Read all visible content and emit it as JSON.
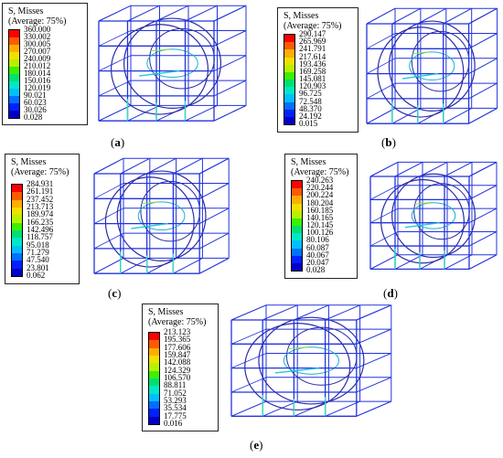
{
  "legend_title": "S, Misses",
  "legend_subtitle": "(Average: 75%)",
  "colors": [
    "#ff0000",
    "#ff5a00",
    "#ffae00",
    "#f0e000",
    "#b8f000",
    "#3cf000",
    "#00e070",
    "#00e8c8",
    "#00bfff",
    "#0070ff",
    "#0020ff",
    "#0000c8"
  ],
  "panels": [
    {
      "id": "a",
      "caption_open": "(",
      "caption_letter": "a",
      "caption_close": ")",
      "values": [
        "360.000",
        "330.002",
        "300.005",
        "270.007",
        "240.009",
        "210.012",
        "180.014",
        "150.016",
        "120.019",
        "90.021",
        "60.023",
        "30.026",
        "0.028"
      ]
    },
    {
      "id": "b",
      "caption_open": "(",
      "caption_letter": "b",
      "caption_close": ")",
      "values": [
        "290.147",
        "265.969",
        "241.791",
        "217.614",
        "193.436",
        "169.258",
        "145.081",
        "120.903",
        "96.725",
        "72.548",
        "48.370",
        "24.192",
        "0.015"
      ]
    },
    {
      "id": "c",
      "caption_open": "(",
      "caption_letter": "c",
      "caption_close": ")",
      "values": [
        "284.931",
        "261.191",
        "237.452",
        "213.713",
        "189.974",
        "166.235",
        "142.496",
        "118.757",
        "95.018",
        "71.279",
        "47.540",
        "23.801",
        "0.062"
      ]
    },
    {
      "id": "d",
      "caption_open": "(",
      "caption_letter": "d",
      "caption_close": ")",
      "values": [
        "240.263",
        "220.244",
        "200.224",
        "180.204",
        "160.185",
        "140.165",
        "120.145",
        "100.126",
        "80.106",
        "60.087",
        "40.067",
        "20.047",
        "0.028"
      ]
    },
    {
      "id": "e",
      "caption_open": "(",
      "caption_letter": "e",
      "caption_close": ")",
      "values": [
        "213.123",
        "195.365",
        "177.606",
        "159.847",
        "142.088",
        "124.329",
        "106.570",
        "88.811",
        "71.052",
        "53.293",
        "35.534",
        "17.775",
        "0.016"
      ]
    }
  ]
}
